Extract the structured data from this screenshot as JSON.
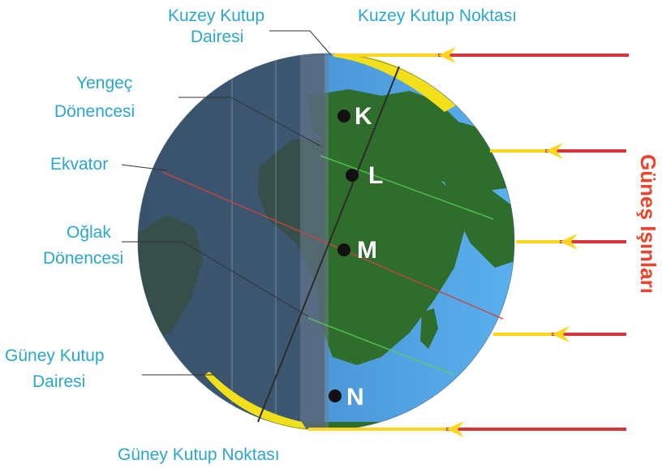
{
  "labels": {
    "north_circle_line1": "Kuzey Kutup",
    "north_circle_line2": "Dairesi",
    "north_pole": "Kuzey Kutup Noktası",
    "cancer_line1": "Yengeç",
    "cancer_line2": "Dönencesi",
    "equator": "Ekvator",
    "capricorn_line1": "Oğlak",
    "capricorn_line2": "Dönencesi",
    "south_circle_line1": "Güney Kutup",
    "south_circle_line2": "Dairesi",
    "south_pole": "Güney Kutup Noktası",
    "sun_rays": "Güneş Işınları"
  },
  "points": {
    "k": "K",
    "l": "L",
    "m": "M",
    "n": "N"
  },
  "colors": {
    "label_text": "#2aa6cf",
    "sun_text": "#e8452a",
    "ray": "#d9343a",
    "ray_highlight": "#ffd51f",
    "ocean": "#4a9be0",
    "land": "#2f6d2c",
    "night_shade": "#3a4654"
  }
}
